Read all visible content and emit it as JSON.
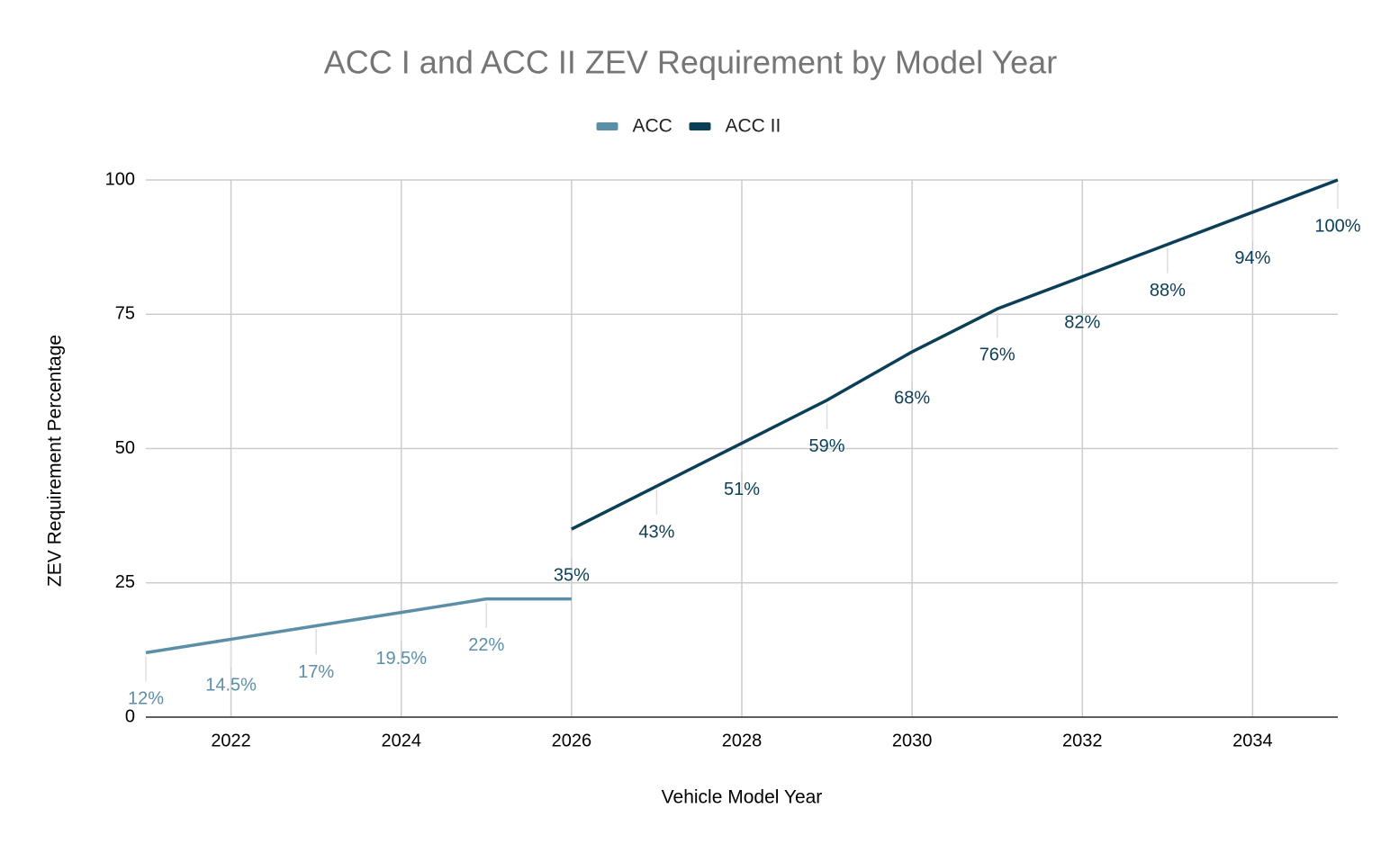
{
  "chart_data": {
    "type": "line",
    "title": "ACC I and ACC II ZEV Requirement by Model Year",
    "x_label": "Vehicle Model Year",
    "y_label": "ZEV Requirement Percentage",
    "x": [
      2021,
      2022,
      2023,
      2024,
      2025,
      2026,
      2027,
      2028,
      2029,
      2030,
      2031,
      2032,
      2033,
      2034,
      2035
    ],
    "series": [
      {
        "name": "ACC",
        "color": "#5b8fa8",
        "values": [
          12,
          14.5,
          17,
          19.5,
          22,
          22,
          null,
          null,
          null,
          null,
          null,
          null,
          null,
          null,
          null
        ],
        "value_labels": [
          "12%",
          "14.5%",
          "17%",
          "19.5%",
          "22%",
          null,
          null,
          null,
          null,
          null,
          null,
          null,
          null,
          null,
          null
        ]
      },
      {
        "name": "ACC II",
        "color": "#0b3f57",
        "values": [
          null,
          null,
          null,
          null,
          null,
          35,
          43,
          51,
          59,
          68,
          76,
          82,
          88,
          94,
          100
        ],
        "value_labels": [
          null,
          null,
          null,
          null,
          null,
          "35%",
          "43%",
          "51%",
          "59%",
          "68%",
          "76%",
          "82%",
          "88%",
          "94%",
          "100%"
        ]
      }
    ],
    "xlim": [
      2021,
      2035
    ],
    "xticks": [
      2022,
      2024,
      2026,
      2028,
      2030,
      2032,
      2034
    ],
    "ylim": [
      0,
      100
    ],
    "yticks": [
      0,
      25,
      50,
      75,
      100
    ],
    "grid": true,
    "legend": "top"
  }
}
